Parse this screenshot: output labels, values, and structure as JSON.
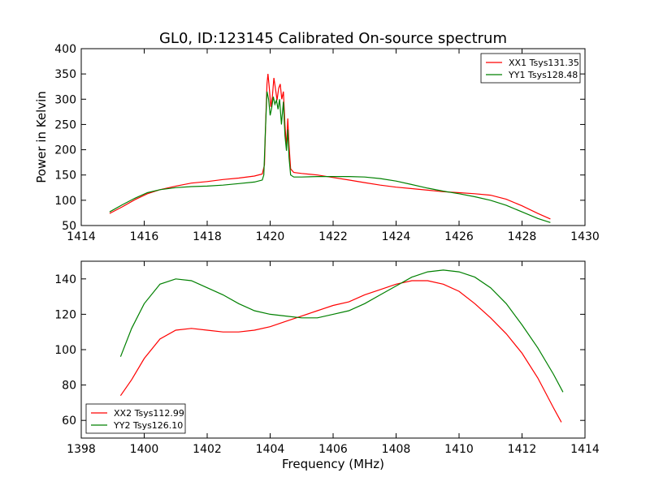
{
  "figure": {
    "title": "GL0, ID:123145 Calibrated On-source spectrum",
    "ylabel": "Power in Kelvin",
    "xlabel": "Frequency (MHz)"
  },
  "chart_data": [
    {
      "type": "line",
      "title": "GL0, ID:123145 Calibrated On-source spectrum",
      "xlabel": "",
      "ylabel": "Power in Kelvin",
      "xlim": [
        1414,
        1430
      ],
      "ylim": [
        50,
        400
      ],
      "xticks": [
        1414,
        1416,
        1418,
        1420,
        1422,
        1424,
        1426,
        1428,
        1430
      ],
      "yticks": [
        50,
        100,
        150,
        200,
        250,
        300,
        350,
        400
      ],
      "legend_position": "top-right",
      "grid": false,
      "series": [
        {
          "name": "XX1 Tsys131.35",
          "color": "#ff0000",
          "points": [
            [
              1414.9,
              74
            ],
            [
              1415.3,
              87
            ],
            [
              1415.7,
              101
            ],
            [
              1416.1,
              113
            ],
            [
              1416.5,
              121
            ],
            [
              1417.0,
              128
            ],
            [
              1417.5,
              134
            ],
            [
              1418.0,
              137
            ],
            [
              1418.5,
              141
            ],
            [
              1419.0,
              144
            ],
            [
              1419.5,
              148
            ],
            [
              1419.75,
              152
            ],
            [
              1419.82,
              170
            ],
            [
              1419.86,
              260
            ],
            [
              1419.9,
              330
            ],
            [
              1419.93,
              350
            ],
            [
              1419.97,
              325
            ],
            [
              1420.02,
              285
            ],
            [
              1420.07,
              305
            ],
            [
              1420.12,
              342
            ],
            [
              1420.17,
              320
            ],
            [
              1420.22,
              298
            ],
            [
              1420.27,
              322
            ],
            [
              1420.32,
              330
            ],
            [
              1420.37,
              300
            ],
            [
              1420.42,
              315
            ],
            [
              1420.47,
              250
            ],
            [
              1420.52,
              205
            ],
            [
              1420.56,
              262
            ],
            [
              1420.6,
              210
            ],
            [
              1420.65,
              162
            ],
            [
              1420.75,
              155
            ],
            [
              1421.0,
              153
            ],
            [
              1421.5,
              150
            ],
            [
              1422.0,
              145
            ],
            [
              1422.5,
              140
            ],
            [
              1423.0,
              135
            ],
            [
              1423.5,
              130
            ],
            [
              1424.0,
              126
            ],
            [
              1424.5,
              123
            ],
            [
              1425.0,
              120
            ],
            [
              1425.5,
              117
            ],
            [
              1426.0,
              115
            ],
            [
              1426.5,
              113
            ],
            [
              1427.0,
              110
            ],
            [
              1427.5,
              102
            ],
            [
              1428.0,
              89
            ],
            [
              1428.5,
              74
            ],
            [
              1428.9,
              63
            ]
          ]
        },
        {
          "name": "YY1 Tsys128.48",
          "color": "#008000",
          "points": [
            [
              1414.9,
              77
            ],
            [
              1415.3,
              91
            ],
            [
              1415.7,
              104
            ],
            [
              1416.1,
              115
            ],
            [
              1416.5,
              121
            ],
            [
              1417.0,
              125
            ],
            [
              1417.5,
              127
            ],
            [
              1418.0,
              128
            ],
            [
              1418.5,
              130
            ],
            [
              1419.0,
              133
            ],
            [
              1419.5,
              136
            ],
            [
              1419.75,
              140
            ],
            [
              1419.8,
              150
            ],
            [
              1419.85,
              240
            ],
            [
              1419.9,
              315
            ],
            [
              1419.95,
              300
            ],
            [
              1420.0,
              268
            ],
            [
              1420.05,
              283
            ],
            [
              1420.1,
              305
            ],
            [
              1420.15,
              290
            ],
            [
              1420.2,
              298
            ],
            [
              1420.25,
              280
            ],
            [
              1420.3,
              300
            ],
            [
              1420.36,
              250
            ],
            [
              1420.42,
              295
            ],
            [
              1420.47,
              228
            ],
            [
              1420.52,
              198
            ],
            [
              1420.56,
              240
            ],
            [
              1420.6,
              185
            ],
            [
              1420.65,
              150
            ],
            [
              1420.75,
              146
            ],
            [
              1421.0,
              146
            ],
            [
              1421.5,
              147
            ],
            [
              1422.0,
              147
            ],
            [
              1422.5,
              147
            ],
            [
              1423.0,
              146
            ],
            [
              1423.5,
              143
            ],
            [
              1424.0,
              138
            ],
            [
              1424.5,
              131
            ],
            [
              1425.0,
              124
            ],
            [
              1425.5,
              118
            ],
            [
              1426.0,
              113
            ],
            [
              1426.5,
              107
            ],
            [
              1427.0,
              100
            ],
            [
              1427.5,
              90
            ],
            [
              1428.0,
              77
            ],
            [
              1428.5,
              64
            ],
            [
              1428.9,
              56
            ]
          ]
        }
      ]
    },
    {
      "type": "line",
      "title": "",
      "xlabel": "Frequency (MHz)",
      "ylabel": "",
      "xlim": [
        1398,
        1414
      ],
      "ylim": [
        50,
        150
      ],
      "xticks": [
        1398,
        1400,
        1402,
        1404,
        1406,
        1408,
        1410,
        1412,
        1414
      ],
      "yticks": [
        60,
        80,
        100,
        120,
        140
      ],
      "legend_position": "bottom-left",
      "grid": false,
      "series": [
        {
          "name": "XX2 Tsys112.99",
          "color": "#ff0000",
          "points": [
            [
              1399.25,
              74
            ],
            [
              1399.6,
              83
            ],
            [
              1400.0,
              95
            ],
            [
              1400.5,
              106
            ],
            [
              1401.0,
              111
            ],
            [
              1401.5,
              112
            ],
            [
              1402.0,
              111
            ],
            [
              1402.5,
              110
            ],
            [
              1403.0,
              110
            ],
            [
              1403.5,
              111
            ],
            [
              1404.0,
              113
            ],
            [
              1404.5,
              116
            ],
            [
              1405.0,
              119
            ],
            [
              1405.5,
              122
            ],
            [
              1406.0,
              125
            ],
            [
              1406.5,
              127
            ],
            [
              1407.0,
              131
            ],
            [
              1407.5,
              134
            ],
            [
              1408.0,
              137
            ],
            [
              1408.5,
              139
            ],
            [
              1409.0,
              139
            ],
            [
              1409.5,
              137
            ],
            [
              1410.0,
              133
            ],
            [
              1410.5,
              126
            ],
            [
              1411.0,
              118
            ],
            [
              1411.5,
              109
            ],
            [
              1412.0,
              98
            ],
            [
              1412.5,
              84
            ],
            [
              1413.0,
              67
            ],
            [
              1413.25,
              59
            ]
          ]
        },
        {
          "name": "YY2 Tsys126.10",
          "color": "#008000",
          "points": [
            [
              1399.25,
              96
            ],
            [
              1399.6,
              112
            ],
            [
              1400.0,
              126
            ],
            [
              1400.5,
              137
            ],
            [
              1401.0,
              140
            ],
            [
              1401.5,
              139
            ],
            [
              1402.0,
              135
            ],
            [
              1402.5,
              131
            ],
            [
              1403.0,
              126
            ],
            [
              1403.5,
              122
            ],
            [
              1404.0,
              120
            ],
            [
              1404.5,
              119
            ],
            [
              1405.0,
              118
            ],
            [
              1405.5,
              118
            ],
            [
              1406.0,
              120
            ],
            [
              1406.5,
              122
            ],
            [
              1407.0,
              126
            ],
            [
              1407.5,
              131
            ],
            [
              1408.0,
              136
            ],
            [
              1408.5,
              141
            ],
            [
              1409.0,
              144
            ],
            [
              1409.5,
              145
            ],
            [
              1410.0,
              144
            ],
            [
              1410.5,
              141
            ],
            [
              1411.0,
              135
            ],
            [
              1411.5,
              126
            ],
            [
              1412.0,
              114
            ],
            [
              1412.5,
              101
            ],
            [
              1413.0,
              86
            ],
            [
              1413.3,
              76
            ]
          ]
        }
      ]
    }
  ]
}
